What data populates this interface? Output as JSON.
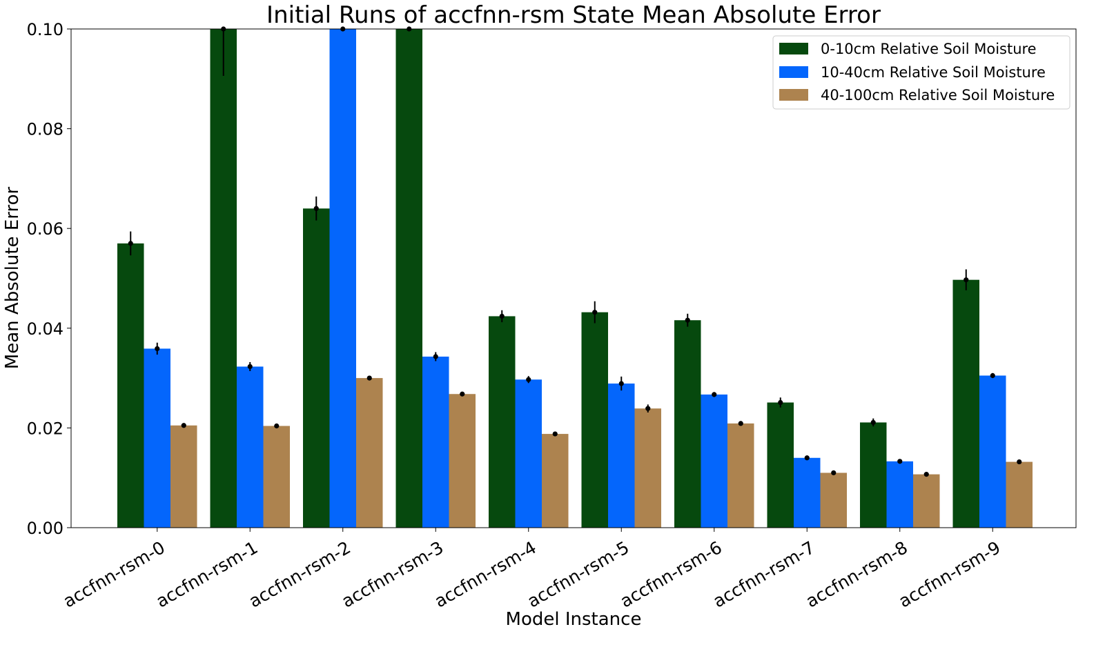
{
  "chart_data": {
    "type": "bar",
    "title": "Initial Runs of accfnn-rsm State Mean Absolute Error",
    "xlabel": "Model Instance",
    "ylabel": "Mean Absolute Error",
    "ylim": [
      0,
      0.1
    ],
    "yticks": [
      "0.00",
      "0.02",
      "0.04",
      "0.06",
      "0.08",
      "0.10"
    ],
    "grid": false,
    "legend_position": "top-right",
    "categories": [
      "accfnn-rsm-0",
      "accfnn-rsm-1",
      "accfnn-rsm-2",
      "accfnn-rsm-3",
      "accfnn-rsm-4",
      "accfnn-rsm-5",
      "accfnn-rsm-6",
      "accfnn-rsm-7",
      "accfnn-rsm-8",
      "accfnn-rsm-9"
    ],
    "series": [
      {
        "name": "0-10cm Relative Soil Moisture",
        "color": "#06490e",
        "values": [
          0.057,
          0.1,
          0.064,
          0.1,
          0.0424,
          0.0432,
          0.0416,
          0.0251,
          0.0211,
          0.0497
        ],
        "errors": [
          0.0024,
          0.0094,
          0.0024,
          0.0,
          0.0012,
          0.0022,
          0.0013,
          0.001,
          0.0008,
          0.0021
        ]
      },
      {
        "name": "10-40cm Relative Soil Moisture",
        "color": "#0466fc",
        "values": [
          0.0359,
          0.0323,
          0.1,
          0.0343,
          0.0297,
          0.0289,
          0.0267,
          0.014,
          0.0133,
          0.0305
        ],
        "errors": [
          0.0012,
          0.0009,
          0.0,
          0.0009,
          0.0007,
          0.0014,
          0.0005,
          0.0003,
          0.0003,
          0.0005
        ]
      },
      {
        "name": "40-100cm Relative Soil Moisture",
        "color": "#ad834f",
        "values": [
          0.0205,
          0.0204,
          0.03,
          0.0268,
          0.0188,
          0.0239,
          0.0209,
          0.011,
          0.0107,
          0.0132
        ],
        "errors": [
          0.0003,
          0.0003,
          0.0003,
          0.0003,
          0.0002,
          0.0008,
          0.0004,
          0.0002,
          0.0002,
          0.0003
        ]
      }
    ]
  }
}
